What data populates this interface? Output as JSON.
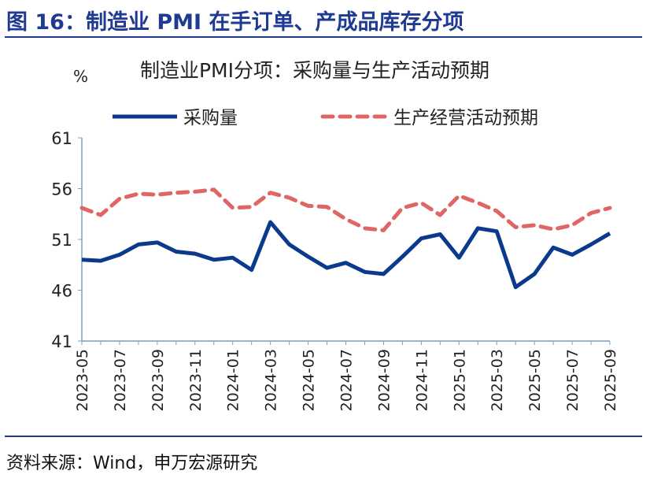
{
  "figure": {
    "title": "图 16：制造业 PMI 在手订单、产成品库存分项",
    "source": "资料来源：Wind，申万宏源研究"
  },
  "chart_data": {
    "type": "line",
    "title": "制造业PMI分项：采购量与生产活动预期",
    "ylabel": "%",
    "ylim": [
      41,
      61
    ],
    "yticks": [
      41,
      46,
      51,
      56,
      61
    ],
    "grid": false,
    "legend_position": "top",
    "x": [
      "2023-05",
      "2023-06",
      "2023-07",
      "2023-08",
      "2023-09",
      "2023-10",
      "2023-11",
      "2023-12",
      "2024-01",
      "2024-02",
      "2024-03",
      "2024-04",
      "2024-05",
      "2024-06",
      "2024-07",
      "2024-08",
      "2024-09",
      "2024-10",
      "2024-11",
      "2024-12",
      "2025-01",
      "2025-02",
      "2025-03",
      "2025-04",
      "2025-05",
      "2025-06",
      "2025-07",
      "2025-08",
      "2025-09"
    ],
    "xtick_labels": [
      "2023-05",
      "2023-07",
      "2023-09",
      "2023-11",
      "2024-01",
      "2024-03",
      "2024-05",
      "2024-07",
      "2024-09",
      "2024-11",
      "2025-01",
      "2025-03",
      "2025-05",
      "2025-07",
      "2025-09"
    ],
    "series": [
      {
        "name": "采购量",
        "color": "#0b3a8c",
        "style": "solid",
        "values": [
          49.0,
          48.9,
          49.5,
          50.5,
          50.7,
          49.8,
          49.6,
          49.0,
          49.2,
          48.0,
          52.7,
          50.5,
          49.3,
          48.2,
          48.7,
          47.8,
          47.6,
          49.3,
          51.1,
          51.5,
          49.2,
          52.1,
          51.8,
          46.3,
          47.6,
          50.2,
          49.5,
          50.5,
          51.6
        ]
      },
      {
        "name": "生产经营活动预期",
        "color": "#e06666",
        "style": "dashed",
        "values": [
          54.1,
          53.4,
          55.0,
          55.5,
          55.4,
          55.6,
          55.7,
          55.9,
          54.1,
          54.2,
          55.6,
          55.1,
          54.3,
          54.2,
          53.0,
          52.1,
          51.9,
          54.1,
          54.6,
          53.4,
          55.3,
          54.6,
          53.8,
          52.2,
          52.4,
          52.0,
          52.4,
          53.6,
          54.1
        ]
      }
    ]
  }
}
